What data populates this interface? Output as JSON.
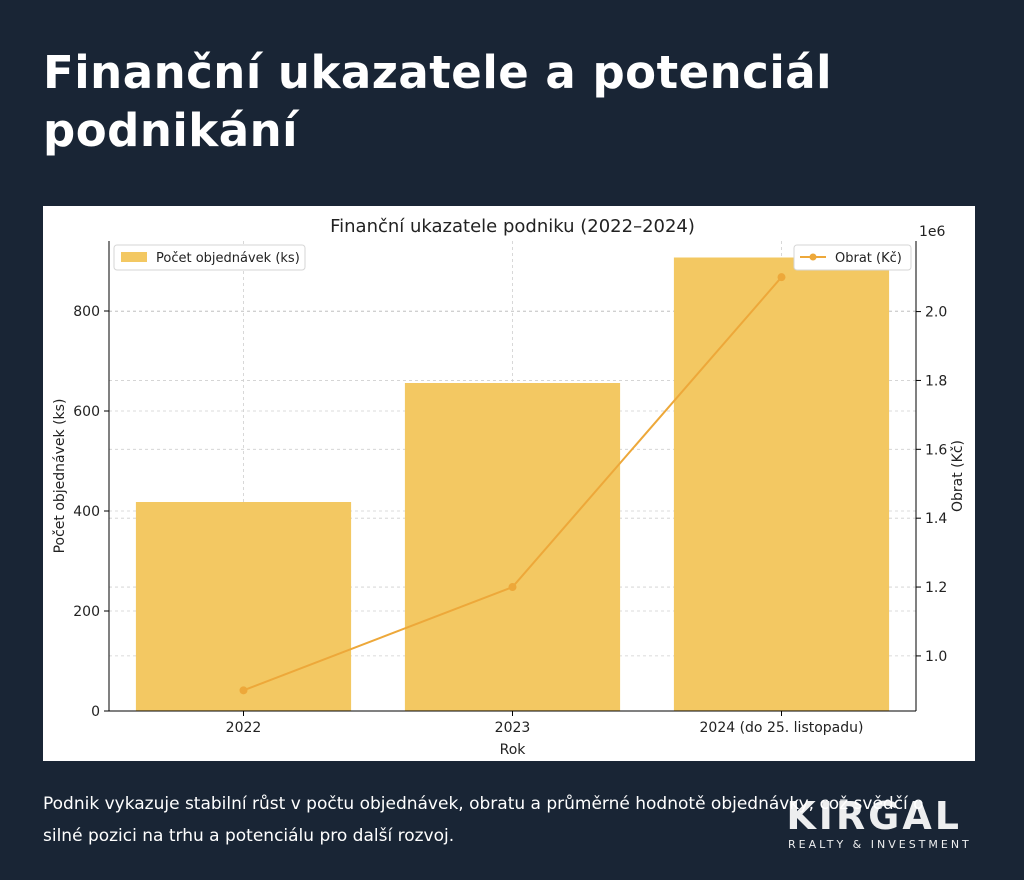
{
  "page": {
    "title": "Finanční ukazatele a potenciál podnikání",
    "description": "Podnik vykazuje stabilní růst v počtu objednávek, obratu a průměrné hodnotě objednávky, což svědčí o silné pozici na trhu a potenciálu pro další rozvoj."
  },
  "logo": {
    "word": "KIRGAL",
    "sub": "REALTY & INVESTMENT"
  },
  "colors": {
    "background": "#192535",
    "bar": "#f3c862",
    "line": "#eda83a"
  },
  "chart_data": {
    "type": "bar",
    "title": "Finanční ukazatele podniku (2022–2024)",
    "xlabel": "Rok",
    "ylabel": "Počet objednávek (ks)",
    "y2label": "Obrat (Kč)",
    "y2_offset_label": "1e6",
    "categories": [
      "2022",
      "2023",
      "2024 (do 25. listopadu)"
    ],
    "grid": true,
    "series": [
      {
        "name": "Počet objednávek (ks)",
        "type": "bar",
        "axis": "left",
        "values": [
          418,
          656,
          907
        ]
      },
      {
        "name": "Obrat (Kč)",
        "type": "line",
        "axis": "right",
        "values": [
          900000,
          1200000,
          2100000
        ]
      }
    ],
    "ylim": [
      0,
      940
    ],
    "yticks": [
      0,
      200,
      400,
      600,
      800
    ],
    "y2lim": [
      0.84,
      2.205
    ],
    "y2ticks": [
      1.0,
      1.2,
      1.4,
      1.6,
      1.8,
      2.0
    ],
    "y2ticklabels": [
      "1.0",
      "1.2",
      "1.4",
      "1.6",
      "1.8",
      "2.0"
    ],
    "legend_left_placement": "top-left",
    "legend_right_placement": "top-right"
  }
}
